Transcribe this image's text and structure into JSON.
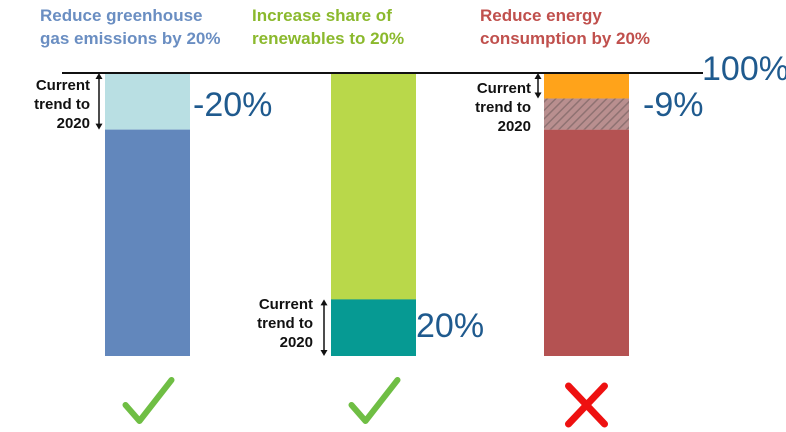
{
  "colors": {
    "title_ghg": "#6a8ec2",
    "title_ren": "#8bb92d",
    "title_energy": "#c0504d",
    "ghg_current": "#6287bc",
    "ghg_gap": "#b9dfe3",
    "ren_base": "#b9d84a",
    "ren_current": "#069a93",
    "energy_base": "#b45252",
    "energy_orange": "#ffa31a",
    "energy_hatch": "#8f7272",
    "check": "#6fbe44",
    "cross": "#ee1111",
    "value_text": "#1f5a8e"
  },
  "chart_data": {
    "type": "bar",
    "baseline_label": "100%",
    "ylim": [
      0,
      100
    ],
    "bars": [
      {
        "title": "Reduce greenhouse\ngas emissions by 20%",
        "target_value": 80,
        "current_trend_value": 80,
        "annotation": "-20%",
        "trend_label": "Current\ntrend to\n2020",
        "status": "check"
      },
      {
        "title": "Increase share of\nrenewables to 20%",
        "target_value": 20,
        "current_trend_value": 20,
        "annotation": "20%",
        "trend_label": "Current\ntrend to\n2020",
        "status": "check"
      },
      {
        "title": "Reduce energy\nconsumption by 20%",
        "target_value": 80,
        "current_trend_value": 91,
        "annotation": "-9%",
        "trend_label": "Current\ntrend to\n2020",
        "status": "cross"
      }
    ]
  }
}
